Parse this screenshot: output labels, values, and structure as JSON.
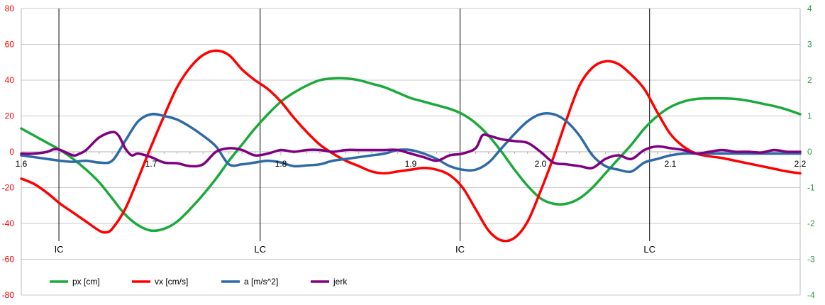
{
  "chart_data": {
    "type": "line",
    "title": "",
    "xlabel": "",
    "ylabel": "",
    "xlim": [
      1.6,
      2.2
    ],
    "x_ticks": [
      1.6,
      1.7,
      1.8,
      1.9,
      2.0,
      2.1,
      2.2
    ],
    "x_tick_labels": [
      "1.6",
      "1.7",
      "1.8",
      "1.9",
      "2.0",
      "2.1",
      "2.2"
    ],
    "ylim_left": [
      -80,
      80
    ],
    "y_ticks_left": [
      -80,
      -60,
      -40,
      -20,
      0,
      20,
      40,
      60,
      80
    ],
    "y_tick_labels_left": [
      "-80",
      "-60",
      "-40",
      "-20",
      "0",
      "20",
      "40",
      "60",
      "80"
    ],
    "ylim_right": [
      -4,
      4
    ],
    "y_ticks_right": [
      -4,
      -3,
      -2,
      -1,
      0,
      1,
      2,
      3,
      4
    ],
    "y_tick_labels_right": [
      "-4",
      "-3",
      "-2",
      "-1",
      "0",
      "1",
      "2",
      "3",
      "4"
    ],
    "grid": true,
    "legend_position": "bottom",
    "events": [
      {
        "x": 1.629,
        "label": "IC"
      },
      {
        "x": 1.784,
        "label": "LC"
      },
      {
        "x": 1.938,
        "label": "IC"
      },
      {
        "x": 2.084,
        "label": "LC"
      }
    ],
    "series": [
      {
        "name": "px [cm]",
        "color": "#1aaa3a",
        "axis": "left",
        "points": [
          [
            1.6,
            13
          ],
          [
            1.61,
            9
          ],
          [
            1.62,
            5
          ],
          [
            1.63,
            1
          ],
          [
            1.64,
            -4
          ],
          [
            1.65,
            -10
          ],
          [
            1.66,
            -17
          ],
          [
            1.67,
            -26
          ],
          [
            1.68,
            -35
          ],
          [
            1.69,
            -41
          ],
          [
            1.7,
            -44
          ],
          [
            1.71,
            -43
          ],
          [
            1.72,
            -39
          ],
          [
            1.73,
            -32
          ],
          [
            1.74,
            -24
          ],
          [
            1.75,
            -15
          ],
          [
            1.76,
            -5
          ],
          [
            1.77,
            4
          ],
          [
            1.78,
            13
          ],
          [
            1.79,
            21
          ],
          [
            1.8,
            28
          ],
          [
            1.81,
            33
          ],
          [
            1.82,
            37
          ],
          [
            1.83,
            40
          ],
          [
            1.84,
            41
          ],
          [
            1.85,
            41
          ],
          [
            1.86,
            40
          ],
          [
            1.87,
            38
          ],
          [
            1.88,
            36
          ],
          [
            1.89,
            33
          ],
          [
            1.9,
            30
          ],
          [
            1.91,
            28
          ],
          [
            1.92,
            26
          ],
          [
            1.93,
            24
          ],
          [
            1.94,
            21
          ],
          [
            1.95,
            16
          ],
          [
            1.96,
            9
          ],
          [
            1.97,
            0
          ],
          [
            1.98,
            -10
          ],
          [
            1.99,
            -19
          ],
          [
            2.0,
            -26
          ],
          [
            2.01,
            -29
          ],
          [
            2.02,
            -29
          ],
          [
            2.03,
            -26
          ],
          [
            2.04,
            -20
          ],
          [
            2.05,
            -12
          ],
          [
            2.06,
            -4
          ],
          [
            2.07,
            4
          ],
          [
            2.08,
            13
          ],
          [
            2.09,
            20
          ],
          [
            2.1,
            25
          ],
          [
            2.11,
            28
          ],
          [
            2.12,
            29.5
          ],
          [
            2.13,
            29.8
          ],
          [
            2.14,
            29.8
          ],
          [
            2.15,
            29.5
          ],
          [
            2.16,
            28.5
          ],
          [
            2.17,
            27
          ],
          [
            2.18,
            25.5
          ],
          [
            2.19,
            23.5
          ],
          [
            2.2,
            21
          ]
        ]
      },
      {
        "name": "vx [cm/s]",
        "color": "#ff0000",
        "axis": "left",
        "points": [
          [
            1.6,
            -15
          ],
          [
            1.61,
            -18
          ],
          [
            1.62,
            -23
          ],
          [
            1.63,
            -29
          ],
          [
            1.64,
            -34
          ],
          [
            1.65,
            -39
          ],
          [
            1.66,
            -44
          ],
          [
            1.665,
            -45
          ],
          [
            1.67,
            -43
          ],
          [
            1.68,
            -32
          ],
          [
            1.69,
            -15
          ],
          [
            1.7,
            3
          ],
          [
            1.71,
            20
          ],
          [
            1.72,
            36
          ],
          [
            1.73,
            47
          ],
          [
            1.74,
            54
          ],
          [
            1.75,
            56.5
          ],
          [
            1.76,
            54
          ],
          [
            1.77,
            46
          ],
          [
            1.78,
            40
          ],
          [
            1.79,
            35
          ],
          [
            1.8,
            28
          ],
          [
            1.81,
            19
          ],
          [
            1.82,
            11
          ],
          [
            1.83,
            4
          ],
          [
            1.84,
            -1
          ],
          [
            1.85,
            -5
          ],
          [
            1.86,
            -8
          ],
          [
            1.87,
            -11
          ],
          [
            1.88,
            -12
          ],
          [
            1.89,
            -11
          ],
          [
            1.9,
            -10
          ],
          [
            1.91,
            -9
          ],
          [
            1.92,
            -10
          ],
          [
            1.93,
            -13
          ],
          [
            1.94,
            -20
          ],
          [
            1.95,
            -32
          ],
          [
            1.96,
            -44
          ],
          [
            1.97,
            -49.5
          ],
          [
            1.98,
            -48
          ],
          [
            1.99,
            -39
          ],
          [
            2.0,
            -22
          ],
          [
            2.01,
            -3
          ],
          [
            2.02,
            18
          ],
          [
            2.03,
            37
          ],
          [
            2.04,
            47
          ],
          [
            2.05,
            50.5
          ],
          [
            2.06,
            49
          ],
          [
            2.07,
            43
          ],
          [
            2.08,
            35
          ],
          [
            2.09,
            22
          ],
          [
            2.1,
            10
          ],
          [
            2.11,
            3
          ],
          [
            2.12,
            -1
          ],
          [
            2.13,
            -2.5
          ],
          [
            2.14,
            -3.5
          ],
          [
            2.15,
            -5
          ],
          [
            2.16,
            -6.5
          ],
          [
            2.17,
            -8
          ],
          [
            2.18,
            -9.5
          ],
          [
            2.19,
            -11
          ],
          [
            2.2,
            -12
          ]
        ]
      },
      {
        "name": "a [m/s^2]",
        "color": "#2f6aa8",
        "axis": "right",
        "points": [
          [
            1.6,
            -0.1
          ],
          [
            1.61,
            -0.15
          ],
          [
            1.62,
            -0.2
          ],
          [
            1.63,
            -0.25
          ],
          [
            1.64,
            -0.28
          ],
          [
            1.65,
            -0.25
          ],
          [
            1.66,
            -0.3
          ],
          [
            1.67,
            -0.25
          ],
          [
            1.68,
            0.3
          ],
          [
            1.69,
            0.85
          ],
          [
            1.7,
            1.05
          ],
          [
            1.71,
            1.0
          ],
          [
            1.72,
            0.9
          ],
          [
            1.73,
            0.7
          ],
          [
            1.74,
            0.45
          ],
          [
            1.75,
            0.15
          ],
          [
            1.76,
            -0.35
          ],
          [
            1.77,
            -0.35
          ],
          [
            1.78,
            -0.3
          ],
          [
            1.79,
            -0.25
          ],
          [
            1.8,
            -0.3
          ],
          [
            1.81,
            -0.4
          ],
          [
            1.82,
            -0.38
          ],
          [
            1.83,
            -0.35
          ],
          [
            1.84,
            -0.25
          ],
          [
            1.85,
            -0.2
          ],
          [
            1.86,
            -0.15
          ],
          [
            1.87,
            -0.1
          ],
          [
            1.88,
            -0.05
          ],
          [
            1.89,
            0.05
          ],
          [
            1.9,
            0.05
          ],
          [
            1.91,
            -0.05
          ],
          [
            1.92,
            -0.2
          ],
          [
            1.93,
            -0.4
          ],
          [
            1.94,
            -0.5
          ],
          [
            1.95,
            -0.5
          ],
          [
            1.96,
            -0.3
          ],
          [
            1.97,
            0.1
          ],
          [
            1.98,
            0.5
          ],
          [
            1.99,
            0.85
          ],
          [
            2.0,
            1.05
          ],
          [
            2.01,
            1.05
          ],
          [
            2.02,
            0.85
          ],
          [
            2.03,
            0.45
          ],
          [
            2.04,
            -0.1
          ],
          [
            2.05,
            -0.4
          ],
          [
            2.06,
            -0.5
          ],
          [
            2.07,
            -0.55
          ],
          [
            2.08,
            -0.3
          ],
          [
            2.09,
            -0.2
          ],
          [
            2.1,
            -0.1
          ],
          [
            2.11,
            -0.05
          ],
          [
            2.12,
            -0.05
          ],
          [
            2.13,
            -0.05
          ],
          [
            2.14,
            -0.05
          ],
          [
            2.15,
            -0.05
          ],
          [
            2.16,
            -0.05
          ],
          [
            2.17,
            -0.05
          ],
          [
            2.18,
            -0.05
          ],
          [
            2.19,
            -0.05
          ],
          [
            2.2,
            -0.05
          ]
        ]
      },
      {
        "name": "jerk",
        "color": "#800080",
        "axis": "right",
        "points": [
          [
            1.6,
            -0.05
          ],
          [
            1.61,
            -0.05
          ],
          [
            1.62,
            0.0
          ],
          [
            1.625,
            0.07
          ],
          [
            1.63,
            0.05
          ],
          [
            1.64,
            -0.1
          ],
          [
            1.645,
            -0.05
          ],
          [
            1.65,
            0.05
          ],
          [
            1.66,
            0.4
          ],
          [
            1.67,
            0.55
          ],
          [
            1.675,
            0.45
          ],
          [
            1.68,
            0.1
          ],
          [
            1.685,
            -0.1
          ],
          [
            1.69,
            -0.05
          ],
          [
            1.7,
            -0.15
          ],
          [
            1.71,
            -0.3
          ],
          [
            1.72,
            -0.32
          ],
          [
            1.73,
            -0.4
          ],
          [
            1.74,
            -0.35
          ],
          [
            1.75,
            0.0
          ],
          [
            1.76,
            0.1
          ],
          [
            1.77,
            0.05
          ],
          [
            1.78,
            -0.1
          ],
          [
            1.79,
            -0.05
          ],
          [
            1.8,
            0.05
          ],
          [
            1.81,
            0.0
          ],
          [
            1.82,
            0.05
          ],
          [
            1.83,
            0.05
          ],
          [
            1.84,
            0.0
          ],
          [
            1.85,
            0.05
          ],
          [
            1.86,
            0.05
          ],
          [
            1.87,
            0.05
          ],
          [
            1.88,
            0.05
          ],
          [
            1.89,
            0.05
          ],
          [
            1.9,
            -0.05
          ],
          [
            1.91,
            -0.15
          ],
          [
            1.92,
            -0.25
          ],
          [
            1.93,
            -0.1
          ],
          [
            1.94,
            -0.05
          ],
          [
            1.95,
            0.1
          ],
          [
            1.955,
            0.45
          ],
          [
            1.96,
            0.45
          ],
          [
            1.97,
            0.35
          ],
          [
            1.98,
            0.3
          ],
          [
            1.99,
            0.25
          ],
          [
            2.0,
            0.0
          ],
          [
            2.01,
            -0.3
          ],
          [
            2.02,
            -0.35
          ],
          [
            2.03,
            -0.4
          ],
          [
            2.04,
            -0.45
          ],
          [
            2.05,
            -0.2
          ],
          [
            2.06,
            -0.1
          ],
          [
            2.07,
            -0.2
          ],
          [
            2.08,
            0.05
          ],
          [
            2.09,
            0.15
          ],
          [
            2.1,
            0.1
          ],
          [
            2.11,
            0.05
          ],
          [
            2.12,
            -0.05
          ],
          [
            2.13,
            0.0
          ],
          [
            2.14,
            0.05
          ],
          [
            2.15,
            0.0
          ],
          [
            2.16,
            0.0
          ],
          [
            2.17,
            -0.02
          ],
          [
            2.18,
            0.05
          ],
          [
            2.19,
            0.0
          ],
          [
            2.2,
            0.0
          ]
        ]
      }
    ]
  }
}
